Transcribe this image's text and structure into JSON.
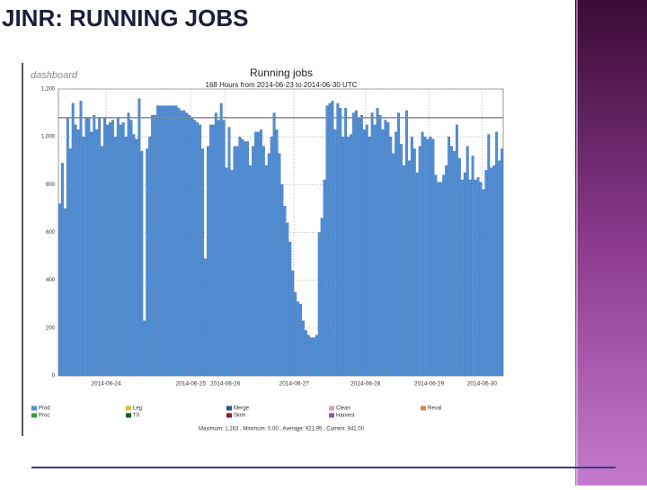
{
  "slide_title": "JINR: RUNNING JOBS",
  "chart_data": {
    "type": "bar",
    "title": "Running jobs",
    "subtitle": "168 Hours from 2014-06-23 to 2014-06-30 UTC",
    "logo": "dashboard",
    "series": [
      {
        "name": "Prod",
        "color": "#4f8fd8",
        "values": [
          720,
          890,
          700,
          1080,
          950,
          1140,
          1050,
          1030,
          1150,
          1000,
          1080,
          1080,
          1020,
          1090,
          1030,
          1080,
          960,
          1080,
          1050,
          1060,
          1070,
          1000,
          1080,
          1050,
          1060,
          1000,
          1100,
          1070,
          1010,
          990,
          1160,
          940,
          230,
          950,
          1000,
          1090,
          1090,
          1130,
          1130,
          1130,
          1130,
          1130,
          1130,
          1130,
          1130,
          1120,
          1110,
          1110,
          1100,
          1090,
          1080,
          1070,
          1060,
          1050,
          950,
          490,
          960,
          1050,
          1050,
          1100,
          1070,
          1140,
          1070,
          870,
          1040,
          860,
          960,
          960,
          1000,
          990,
          980,
          980,
          880,
          960,
          1020,
          1020,
          1030,
          960,
          880,
          930,
          1000,
          1100,
          1030,
          930,
          800,
          710,
          640,
          560,
          440,
          350,
          310,
          300,
          230,
          190,
          170,
          160,
          160,
          170,
          600,
          660,
          820,
          1130,
          1140,
          1150,
          1030,
          1140,
          1120,
          1000,
          1120,
          1000,
          1010,
          1100,
          1110,
          1080,
          1090,
          1030,
          1050,
          1000,
          1100,
          1050,
          1120,
          1090,
          1030,
          1070,
          1060,
          1000,
          930,
          1020,
          1100,
          970,
          880,
          1110,
          900,
          1000,
          950,
          850,
          960,
          1020,
          1000,
          990,
          1000,
          990,
          840,
          810,
          810,
          840,
          880,
          1000,
          960,
          940,
          1050,
          910,
          820,
          850,
          960,
          820,
          920,
          820,
          830,
          810,
          780,
          860,
          1010,
          870,
          880,
          1020,
          900,
          950
        ]
      },
      {
        "name": "Leg",
        "color": "#d8c23a"
      },
      {
        "name": "Merge",
        "color": "#2c4f9e"
      },
      {
        "name": "Clean",
        "color": "#e89aa8"
      },
      {
        "name": "Reval",
        "color": "#e0883a"
      },
      {
        "name": "Proc",
        "color": "#3a9a3a"
      },
      {
        "name": "T0",
        "color": "#1f5a1f"
      },
      {
        "name": "Skim",
        "color": "#8a1f1f"
      },
      {
        "name": "Harvest",
        "color": "#8a5aa8"
      }
    ],
    "reference_line": 1080,
    "ylim": [
      0,
      1200
    ],
    "yticks": [
      0,
      200,
      400,
      600,
      800,
      {
        "value": 1000,
        "label": "1,000"
      },
      {
        "value": 1200,
        "label": "1,200"
      }
    ],
    "xlim": [
      0,
      168
    ],
    "xticks": [
      {
        "value": 18,
        "label": "2014-06-24"
      },
      {
        "value": 50,
        "label": "2014-06-25"
      },
      {
        "value": 63,
        "label": "2014-06-26"
      },
      {
        "value": 89,
        "label": "2014-06-27"
      },
      {
        "value": 116,
        "label": "2014-06-28"
      },
      {
        "value": 140,
        "label": "2014-06-29"
      },
      {
        "value": 160,
        "label": "2014-06-30"
      }
    ],
    "grid": true,
    "footer": "Maximum: 1,163 , Minimum: 0.00 , Average: 921.95 , Current: 941.00"
  }
}
